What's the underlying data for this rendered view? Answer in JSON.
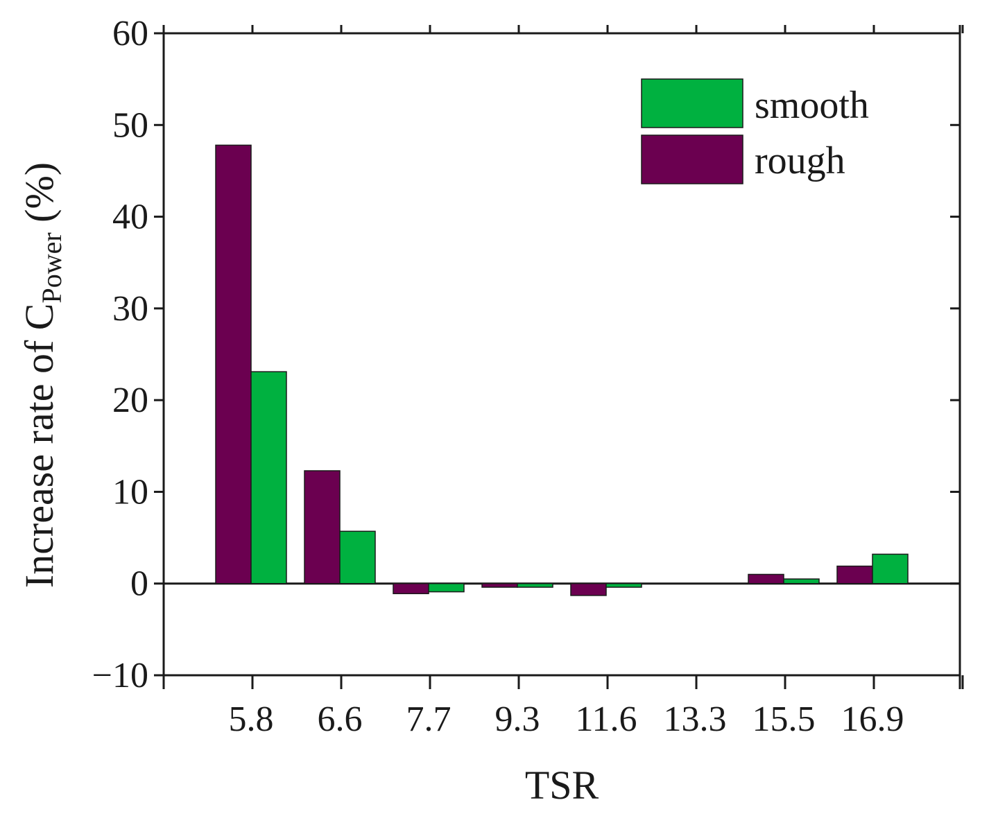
{
  "chart_data": {
    "type": "bar",
    "categories": [
      "5.8",
      "6.6",
      "7.7",
      "9.3",
      "11.6",
      "13.3",
      "15.5",
      "16.9"
    ],
    "xlabel": "TSR",
    "ylabel": {
      "prefix": "Increase rate of C",
      "subscript": "Power",
      "suffix": " (%)"
    },
    "ylim": [
      -10,
      60
    ],
    "yticks": [
      -10,
      0,
      10,
      20,
      30,
      40,
      50,
      60
    ],
    "ytick_labels": [
      "−10",
      "0",
      "10",
      "20",
      "30",
      "40",
      "50",
      "60"
    ],
    "series": [
      {
        "name": "rough",
        "color": "#6b0050",
        "values": [
          47.8,
          12.3,
          -1.1,
          -0.4,
          -1.3,
          0.0,
          1.0,
          1.9
        ]
      },
      {
        "name": "smooth",
        "color": "#00b140",
        "values": [
          23.1,
          5.7,
          -0.9,
          -0.4,
          -0.4,
          0.0,
          0.5,
          3.2
        ]
      }
    ],
    "legend": {
      "position": "top-right",
      "entries": [
        {
          "label": "smooth",
          "color": "#00b140"
        },
        {
          "label": "rough",
          "color": "#6b0050"
        }
      ]
    },
    "grid": false
  }
}
